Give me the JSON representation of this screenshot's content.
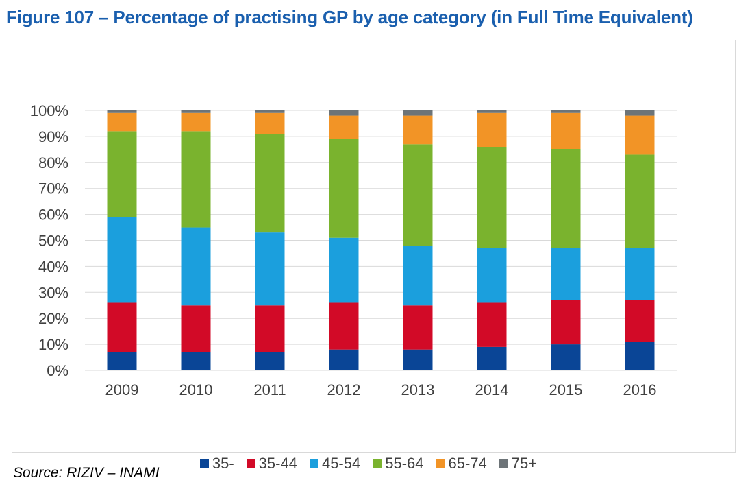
{
  "title": "Figure 107 – Percentage of practising GP by age category (in Full Time Equivalent)",
  "source": "Source: RIZIV – INAMI",
  "chart_data": {
    "type": "bar",
    "stacked": true,
    "categories": [
      "2009",
      "2010",
      "2011",
      "2012",
      "2013",
      "2014",
      "2015",
      "2016"
    ],
    "ylim": [
      0,
      100
    ],
    "yticks": [
      "0%",
      "10%",
      "20%",
      "30%",
      "40%",
      "50%",
      "60%",
      "70%",
      "80%",
      "90%",
      "100%"
    ],
    "grid": true,
    "legend": "bottom",
    "series": [
      {
        "name": "35-",
        "color": "#0a4596",
        "values": [
          7,
          7,
          7,
          8,
          8,
          9,
          10,
          11
        ]
      },
      {
        "name": "35-44",
        "color": "#d20a27",
        "values": [
          19,
          18,
          18,
          18,
          17,
          17,
          17,
          16
        ]
      },
      {
        "name": "45-54",
        "color": "#1b9fdd",
        "values": [
          33,
          30,
          28,
          25,
          23,
          21,
          20,
          20
        ]
      },
      {
        "name": "55-64",
        "color": "#7ab32e",
        "values": [
          33,
          37,
          38,
          38,
          39,
          39,
          38,
          36
        ]
      },
      {
        "name": "65-74",
        "color": "#f29426",
        "values": [
          7,
          7,
          8,
          9,
          11,
          13,
          14,
          15
        ]
      },
      {
        "name": "75+",
        "color": "#6d7478",
        "values": [
          1,
          1,
          1,
          2,
          2,
          1,
          1,
          2
        ]
      }
    ]
  }
}
